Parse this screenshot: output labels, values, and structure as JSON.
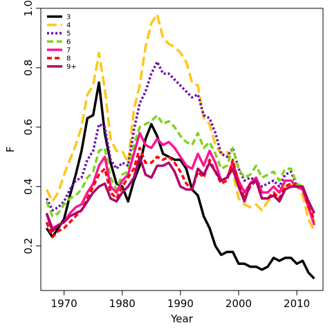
{
  "chart_data": {
    "type": "line",
    "title": "",
    "xlabel": "Year",
    "ylabel": "F",
    "xlim": [
      1966,
      2014.5
    ],
    "ylim": [
      0.05,
      1.0
    ],
    "xticks": [
      1970,
      1980,
      1990,
      2000,
      2010
    ],
    "yticks": [
      0.2,
      0.4,
      0.6,
      0.8,
      1.0
    ],
    "xtick_labels": [
      "1970",
      "1980",
      "1990",
      "2000",
      "2010"
    ],
    "ytick_labels": [
      "0.2",
      "0.4",
      "0.6",
      "0.8",
      "1.0"
    ],
    "grid": false,
    "legend_position": "top-left",
    "x": [
      1967,
      1968,
      1969,
      1970,
      1971,
      1972,
      1973,
      1974,
      1975,
      1976,
      1977,
      1978,
      1979,
      1980,
      1981,
      1982,
      1983,
      1984,
      1985,
      1986,
      1987,
      1988,
      1989,
      1990,
      1991,
      1992,
      1993,
      1994,
      1995,
      1996,
      1997,
      1998,
      1999,
      2000,
      2001,
      2002,
      2003,
      2004,
      2005,
      2006,
      2007,
      2008,
      2009,
      2010,
      2011,
      2012,
      2013
    ],
    "series": [
      {
        "name": "3",
        "color": "#000000",
        "dash": "",
        "values": [
          0.26,
          0.23,
          0.26,
          0.29,
          0.37,
          0.44,
          0.52,
          0.63,
          0.64,
          0.75,
          0.58,
          0.48,
          0.41,
          0.4,
          0.35,
          0.42,
          0.47,
          0.56,
          0.61,
          0.57,
          0.51,
          0.5,
          0.49,
          0.49,
          0.46,
          0.39,
          0.37,
          0.3,
          0.26,
          0.2,
          0.17,
          0.18,
          0.18,
          0.14,
          0.14,
          0.13,
          0.13,
          0.12,
          0.13,
          0.16,
          0.15,
          0.16,
          0.16,
          0.14,
          0.15,
          0.11,
          0.09
        ]
      },
      {
        "name": "4",
        "color": "#FFC61A",
        "dash": "14,6",
        "values": [
          0.39,
          0.35,
          0.38,
          0.44,
          0.49,
          0.54,
          0.6,
          0.71,
          0.74,
          0.85,
          0.73,
          0.56,
          0.52,
          0.52,
          0.48,
          0.66,
          0.74,
          0.87,
          0.95,
          0.98,
          0.9,
          0.88,
          0.87,
          0.85,
          0.82,
          0.75,
          0.74,
          0.63,
          0.61,
          0.54,
          0.51,
          0.52,
          0.45,
          0.36,
          0.34,
          0.33,
          0.34,
          0.32,
          0.35,
          0.37,
          0.36,
          0.4,
          0.41,
          0.4,
          0.37,
          0.29,
          0.25
        ]
      },
      {
        "name": "5",
        "color": "#6A0DAD",
        "dash": "3,3",
        "values": [
          0.36,
          0.32,
          0.33,
          0.35,
          0.39,
          0.42,
          0.43,
          0.49,
          0.52,
          0.61,
          0.6,
          0.49,
          0.46,
          0.48,
          0.47,
          0.59,
          0.68,
          0.72,
          0.78,
          0.82,
          0.78,
          0.78,
          0.76,
          0.74,
          0.72,
          0.7,
          0.71,
          0.64,
          0.63,
          0.58,
          0.51,
          0.5,
          0.53,
          0.46,
          0.42,
          0.43,
          0.42,
          0.4,
          0.41,
          0.42,
          0.4,
          0.44,
          0.45,
          0.4,
          0.39,
          0.35,
          0.31
        ]
      },
      {
        "name": "6",
        "color": "#7ED321",
        "dash": "9,5",
        "values": [
          0.35,
          0.3,
          0.31,
          0.34,
          0.36,
          0.37,
          0.39,
          0.43,
          0.45,
          0.52,
          0.53,
          0.43,
          0.39,
          0.44,
          0.45,
          0.54,
          0.6,
          0.61,
          0.62,
          0.64,
          0.61,
          0.62,
          0.6,
          0.57,
          0.55,
          0.54,
          0.58,
          0.53,
          0.55,
          0.51,
          0.46,
          0.47,
          0.53,
          0.46,
          0.43,
          0.44,
          0.47,
          0.43,
          0.44,
          0.45,
          0.42,
          0.46,
          0.46,
          0.41,
          0.4,
          0.33,
          0.28
        ]
      },
      {
        "name": "7",
        "color": "#FF1493",
        "dash": "",
        "values": [
          0.31,
          0.26,
          0.27,
          0.28,
          0.31,
          0.33,
          0.34,
          0.38,
          0.41,
          0.47,
          0.5,
          0.4,
          0.38,
          0.42,
          0.44,
          0.51,
          0.58,
          0.54,
          0.53,
          0.56,
          0.54,
          0.55,
          0.53,
          0.5,
          0.47,
          0.46,
          0.51,
          0.47,
          0.52,
          0.48,
          0.42,
          0.43,
          0.48,
          0.42,
          0.38,
          0.41,
          0.43,
          0.38,
          0.38,
          0.4,
          0.38,
          0.42,
          0.42,
          0.4,
          0.39,
          0.33,
          0.27
        ]
      },
      {
        "name": "8",
        "color": "#FF0000",
        "dash": "7,4",
        "values": [
          0.28,
          0.23,
          0.25,
          0.26,
          0.28,
          0.3,
          0.32,
          0.36,
          0.4,
          0.44,
          0.46,
          0.38,
          0.36,
          0.4,
          0.43,
          0.46,
          0.53,
          0.48,
          0.48,
          0.5,
          0.49,
          0.5,
          0.48,
          0.45,
          0.41,
          0.39,
          0.45,
          0.43,
          0.49,
          0.45,
          0.41,
          0.42,
          0.49,
          0.41,
          0.36,
          0.4,
          0.42,
          0.36,
          0.36,
          0.38,
          0.36,
          0.4,
          0.41,
          0.4,
          0.4,
          0.33,
          0.29
        ]
      },
      {
        "name": "9+",
        "color": "#B0006B",
        "dash": "",
        "values": [
          0.31,
          0.25,
          0.27,
          0.28,
          0.3,
          0.31,
          0.32,
          0.35,
          0.38,
          0.4,
          0.41,
          0.36,
          0.35,
          0.38,
          0.4,
          0.43,
          0.5,
          0.44,
          0.43,
          0.47,
          0.47,
          0.48,
          0.45,
          0.4,
          0.39,
          0.39,
          0.46,
          0.44,
          0.48,
          0.45,
          0.42,
          0.43,
          0.46,
          0.4,
          0.35,
          0.41,
          0.42,
          0.36,
          0.36,
          0.37,
          0.35,
          0.39,
          0.4,
          0.4,
          0.4,
          0.35,
          0.31
        ]
      }
    ]
  }
}
